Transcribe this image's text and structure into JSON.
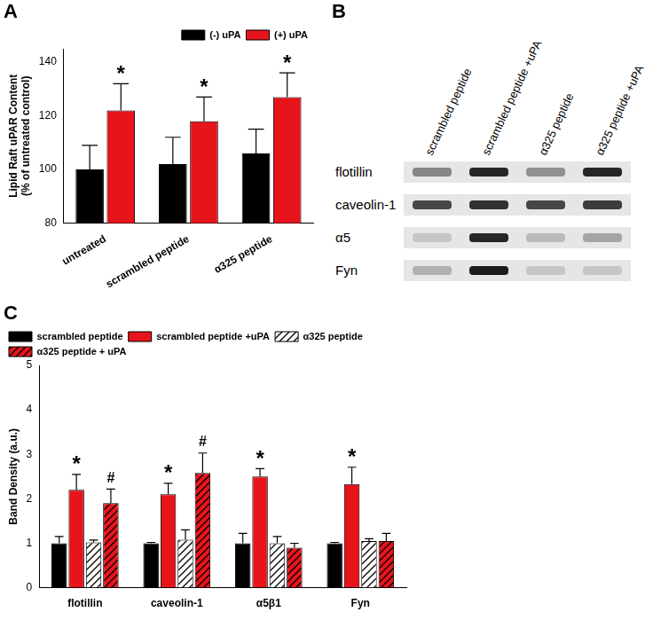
{
  "chart_data": [
    {
      "panel": "A",
      "type": "bar",
      "y_label": [
        "Lipid Raft uPAR Content",
        "(% of untreated control)"
      ],
      "categories": [
        "untreated",
        "scrambled peptide",
        "α325 peptide"
      ],
      "series": [
        {
          "name": "(-) uPA",
          "color": "#000000",
          "values": [
            100,
            102,
            106
          ],
          "errors": [
            9,
            10,
            9
          ]
        },
        {
          "name": "(+) uPA",
          "color": "#e8141c",
          "values": [
            122,
            118,
            127
          ],
          "errors": [
            10,
            9,
            9
          ]
        }
      ],
      "ylim": [
        80,
        145
      ],
      "yticks": [
        80,
        100,
        120,
        140
      ],
      "grid": false,
      "legend": "top right",
      "annotations": [
        {
          "text": "*",
          "category": "untreated",
          "series": "(+) uPA"
        },
        {
          "text": "*",
          "category": "scrambled peptide",
          "series": "(+) uPA"
        },
        {
          "text": "*",
          "category": "α325 peptide",
          "series": "(+) uPA"
        }
      ]
    },
    {
      "panel": "B",
      "type": "blot",
      "lanes": [
        "scrambled peptide",
        "scrambled peptide +uPA",
        "α325 peptide",
        "α325 peptide +uPA"
      ],
      "rows": [
        "flotillin",
        "caveolin-1",
        "α5",
        "Fyn"
      ],
      "intensities": [
        [
          0.45,
          0.9,
          0.4,
          0.9
        ],
        [
          0.75,
          0.85,
          0.75,
          0.8
        ],
        [
          0.15,
          0.9,
          0.2,
          0.3
        ],
        [
          0.25,
          0.95,
          0.15,
          0.15
        ]
      ]
    },
    {
      "panel": "C",
      "type": "bar",
      "y_label": "Band Density (a.u.)",
      "categories": [
        "flotillin",
        "caveolin-1",
        "α5β1",
        "Fyn"
      ],
      "series": [
        {
          "name": "scrambled peptide",
          "color": "#000000",
          "values": [
            1,
            1,
            1,
            1
          ],
          "errors": [
            0.15,
            0.02,
            0.22,
            0.02
          ]
        },
        {
          "name": "scrambled peptide +uPA",
          "color": "#e8141c",
          "values": [
            2.2,
            2.1,
            2.5,
            2.33
          ],
          "errors": [
            0.35,
            0.25,
            0.18,
            0.38
          ]
        },
        {
          "name": "α325 peptide",
          "color": "#ffffff",
          "line_style": "hatched",
          "values": [
            1.02,
            1.08,
            1.0,
            1.05
          ],
          "errors": [
            0.05,
            0.22,
            0.15,
            0.05
          ]
        },
        {
          "name": "α325 peptide + uPA",
          "color": "#e8141c",
          "line_style": "hatched",
          "values": [
            1.9,
            2.58,
            0.9,
            1.05
          ],
          "errors": [
            0.32,
            0.45,
            0.1,
            0.17
          ]
        }
      ],
      "ylim": [
        0,
        5
      ],
      "yticks": [
        0,
        1,
        2,
        3,
        4,
        5
      ],
      "grid": false,
      "legend": "top left",
      "annotations": [
        {
          "text": "*",
          "category": "flotillin",
          "series": "scrambled peptide +uPA"
        },
        {
          "text": "*",
          "category": "caveolin-1",
          "series": "scrambled peptide +uPA"
        },
        {
          "text": "*",
          "category": "α5β1",
          "series": "scrambled peptide +uPA"
        },
        {
          "text": "*",
          "category": "Fyn",
          "series": "scrambled peptide +uPA"
        },
        {
          "text": "#",
          "category": "flotillin",
          "series": "α325 peptide + uPA"
        },
        {
          "text": "#",
          "category": "caveolin-1",
          "series": "α325 peptide + uPA"
        }
      ]
    }
  ]
}
